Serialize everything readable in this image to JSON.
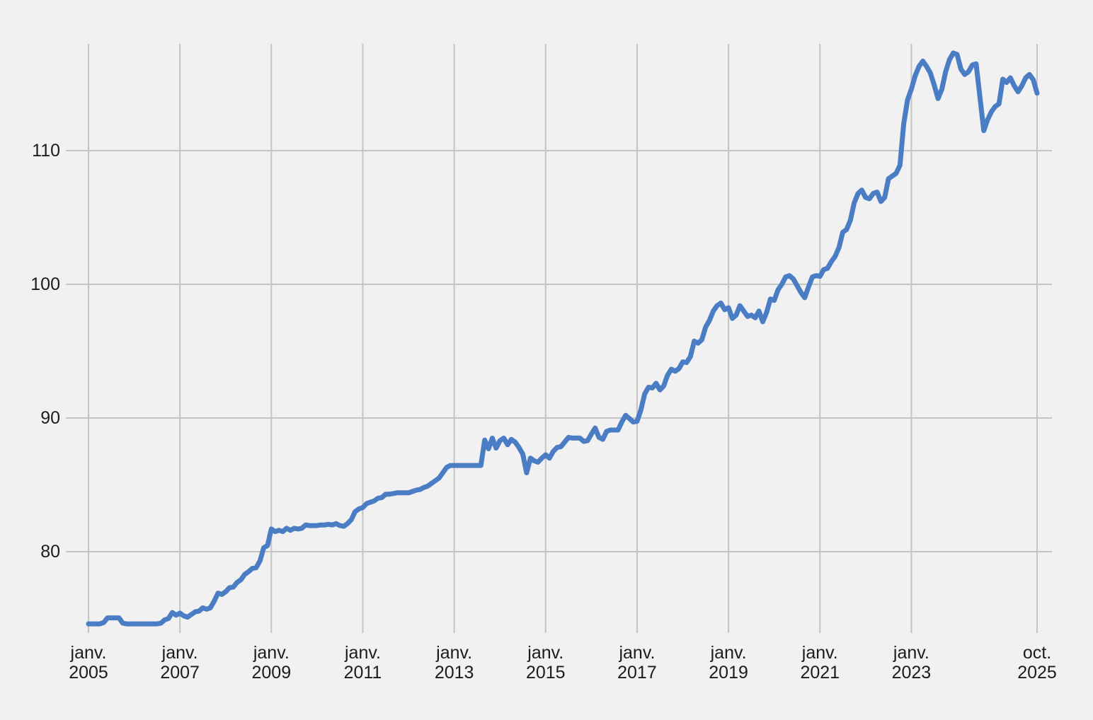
{
  "colors": {
    "background": "#f1f1f1",
    "grid": "#c4c4c4",
    "text": "#1c1c1c",
    "line": "#4a7dc4"
  },
  "chart_data": {
    "type": "line",
    "title": "",
    "legend": false,
    "grid": true,
    "frequency": "monthly",
    "x_start": "janv. 2005",
    "x_end": "oct. 2025",
    "y_ticks": [
      80,
      90,
      100,
      110
    ],
    "y_axis_visible_range": [
      74,
      118
    ],
    "x_ticks": [
      {
        "label_top": "janv.",
        "label_bottom": "2005",
        "month_index": 0
      },
      {
        "label_top": "janv.",
        "label_bottom": "2007",
        "month_index": 24
      },
      {
        "label_top": "janv.",
        "label_bottom": "2009",
        "month_index": 48
      },
      {
        "label_top": "janv.",
        "label_bottom": "2011",
        "month_index": 72
      },
      {
        "label_top": "janv.",
        "label_bottom": "2013",
        "month_index": 96
      },
      {
        "label_top": "janv.",
        "label_bottom": "2015",
        "month_index": 120
      },
      {
        "label_top": "janv.",
        "label_bottom": "2017",
        "month_index": 144
      },
      {
        "label_top": "janv.",
        "label_bottom": "2019",
        "month_index": 168
      },
      {
        "label_top": "janv.",
        "label_bottom": "2021",
        "month_index": 192
      },
      {
        "label_top": "janv.",
        "label_bottom": "2023",
        "month_index": 216
      },
      {
        "label_top": "oct.",
        "label_bottom": "2025",
        "month_index": 249
      }
    ],
    "values": [
      74.6,
      74.6,
      74.6,
      74.6,
      74.7,
      75.05,
      75.05,
      75.05,
      75.05,
      74.65,
      74.6,
      74.6,
      74.6,
      74.6,
      74.6,
      74.6,
      74.6,
      74.6,
      74.6,
      74.65,
      74.9,
      75.0,
      75.45,
      75.25,
      75.4,
      75.2,
      75.1,
      75.3,
      75.5,
      75.55,
      75.8,
      75.7,
      75.8,
      76.3,
      76.9,
      76.8,
      77.0,
      77.3,
      77.35,
      77.7,
      77.9,
      78.3,
      78.5,
      78.75,
      78.8,
      79.3,
      80.3,
      80.45,
      81.7,
      81.5,
      81.6,
      81.5,
      81.75,
      81.6,
      81.75,
      81.7,
      81.75,
      82.0,
      81.95,
      81.95,
      81.95,
      82.0,
      82.0,
      82.05,
      82.0,
      82.1,
      81.95,
      81.9,
      82.1,
      82.4,
      83.0,
      83.2,
      83.3,
      83.6,
      83.7,
      83.8,
      84.0,
      84.05,
      84.3,
      84.3,
      84.35,
      84.4,
      84.4,
      84.4,
      84.4,
      84.5,
      84.6,
      84.65,
      84.8,
      84.9,
      85.1,
      85.3,
      85.5,
      85.9,
      86.3,
      86.45,
      86.45,
      86.45,
      86.45,
      86.45,
      86.45,
      86.45,
      86.45,
      86.45,
      88.35,
      87.7,
      88.5,
      87.75,
      88.3,
      88.5,
      88.0,
      88.4,
      88.2,
      87.8,
      87.3,
      85.9,
      87.0,
      86.8,
      86.7,
      87.0,
      87.25,
      87.0,
      87.5,
      87.8,
      87.85,
      88.2,
      88.55,
      88.5,
      88.5,
      88.5,
      88.25,
      88.3,
      88.8,
      89.25,
      88.55,
      88.4,
      89.0,
      89.1,
      89.1,
      89.1,
      89.7,
      90.2,
      89.95,
      89.7,
      89.75,
      90.6,
      91.8,
      92.3,
      92.25,
      92.6,
      92.1,
      92.4,
      93.2,
      93.65,
      93.5,
      93.7,
      94.2,
      94.15,
      94.6,
      95.75,
      95.6,
      95.85,
      96.8,
      97.3,
      98.0,
      98.4,
      98.6,
      98.1,
      98.25,
      97.45,
      97.7,
      98.4,
      98.0,
      97.6,
      97.7,
      97.5,
      98.0,
      97.2,
      97.9,
      98.9,
      98.8,
      99.6,
      100.0,
      100.55,
      100.65,
      100.4,
      99.9,
      99.4,
      99.0,
      99.8,
      100.55,
      100.65,
      100.6,
      101.1,
      101.2,
      101.7,
      102.1,
      102.75,
      103.9,
      104.1,
      104.8,
      106.1,
      106.8,
      107.05,
      106.5,
      106.4,
      106.8,
      106.9,
      106.2,
      106.5,
      107.9,
      108.1,
      108.3,
      108.9,
      112.0,
      113.8,
      114.6,
      115.6,
      116.3,
      116.7,
      116.3,
      115.8,
      114.9,
      113.9,
      114.6,
      115.9,
      116.8,
      117.3,
      117.2,
      116.1,
      115.7,
      115.9,
      116.4,
      116.5,
      114.0,
      111.5,
      112.3,
      112.9,
      113.3,
      113.5,
      115.35,
      115.1,
      115.45,
      114.85,
      114.4,
      114.85,
      115.45,
      115.7,
      115.3,
      114.3
    ]
  }
}
